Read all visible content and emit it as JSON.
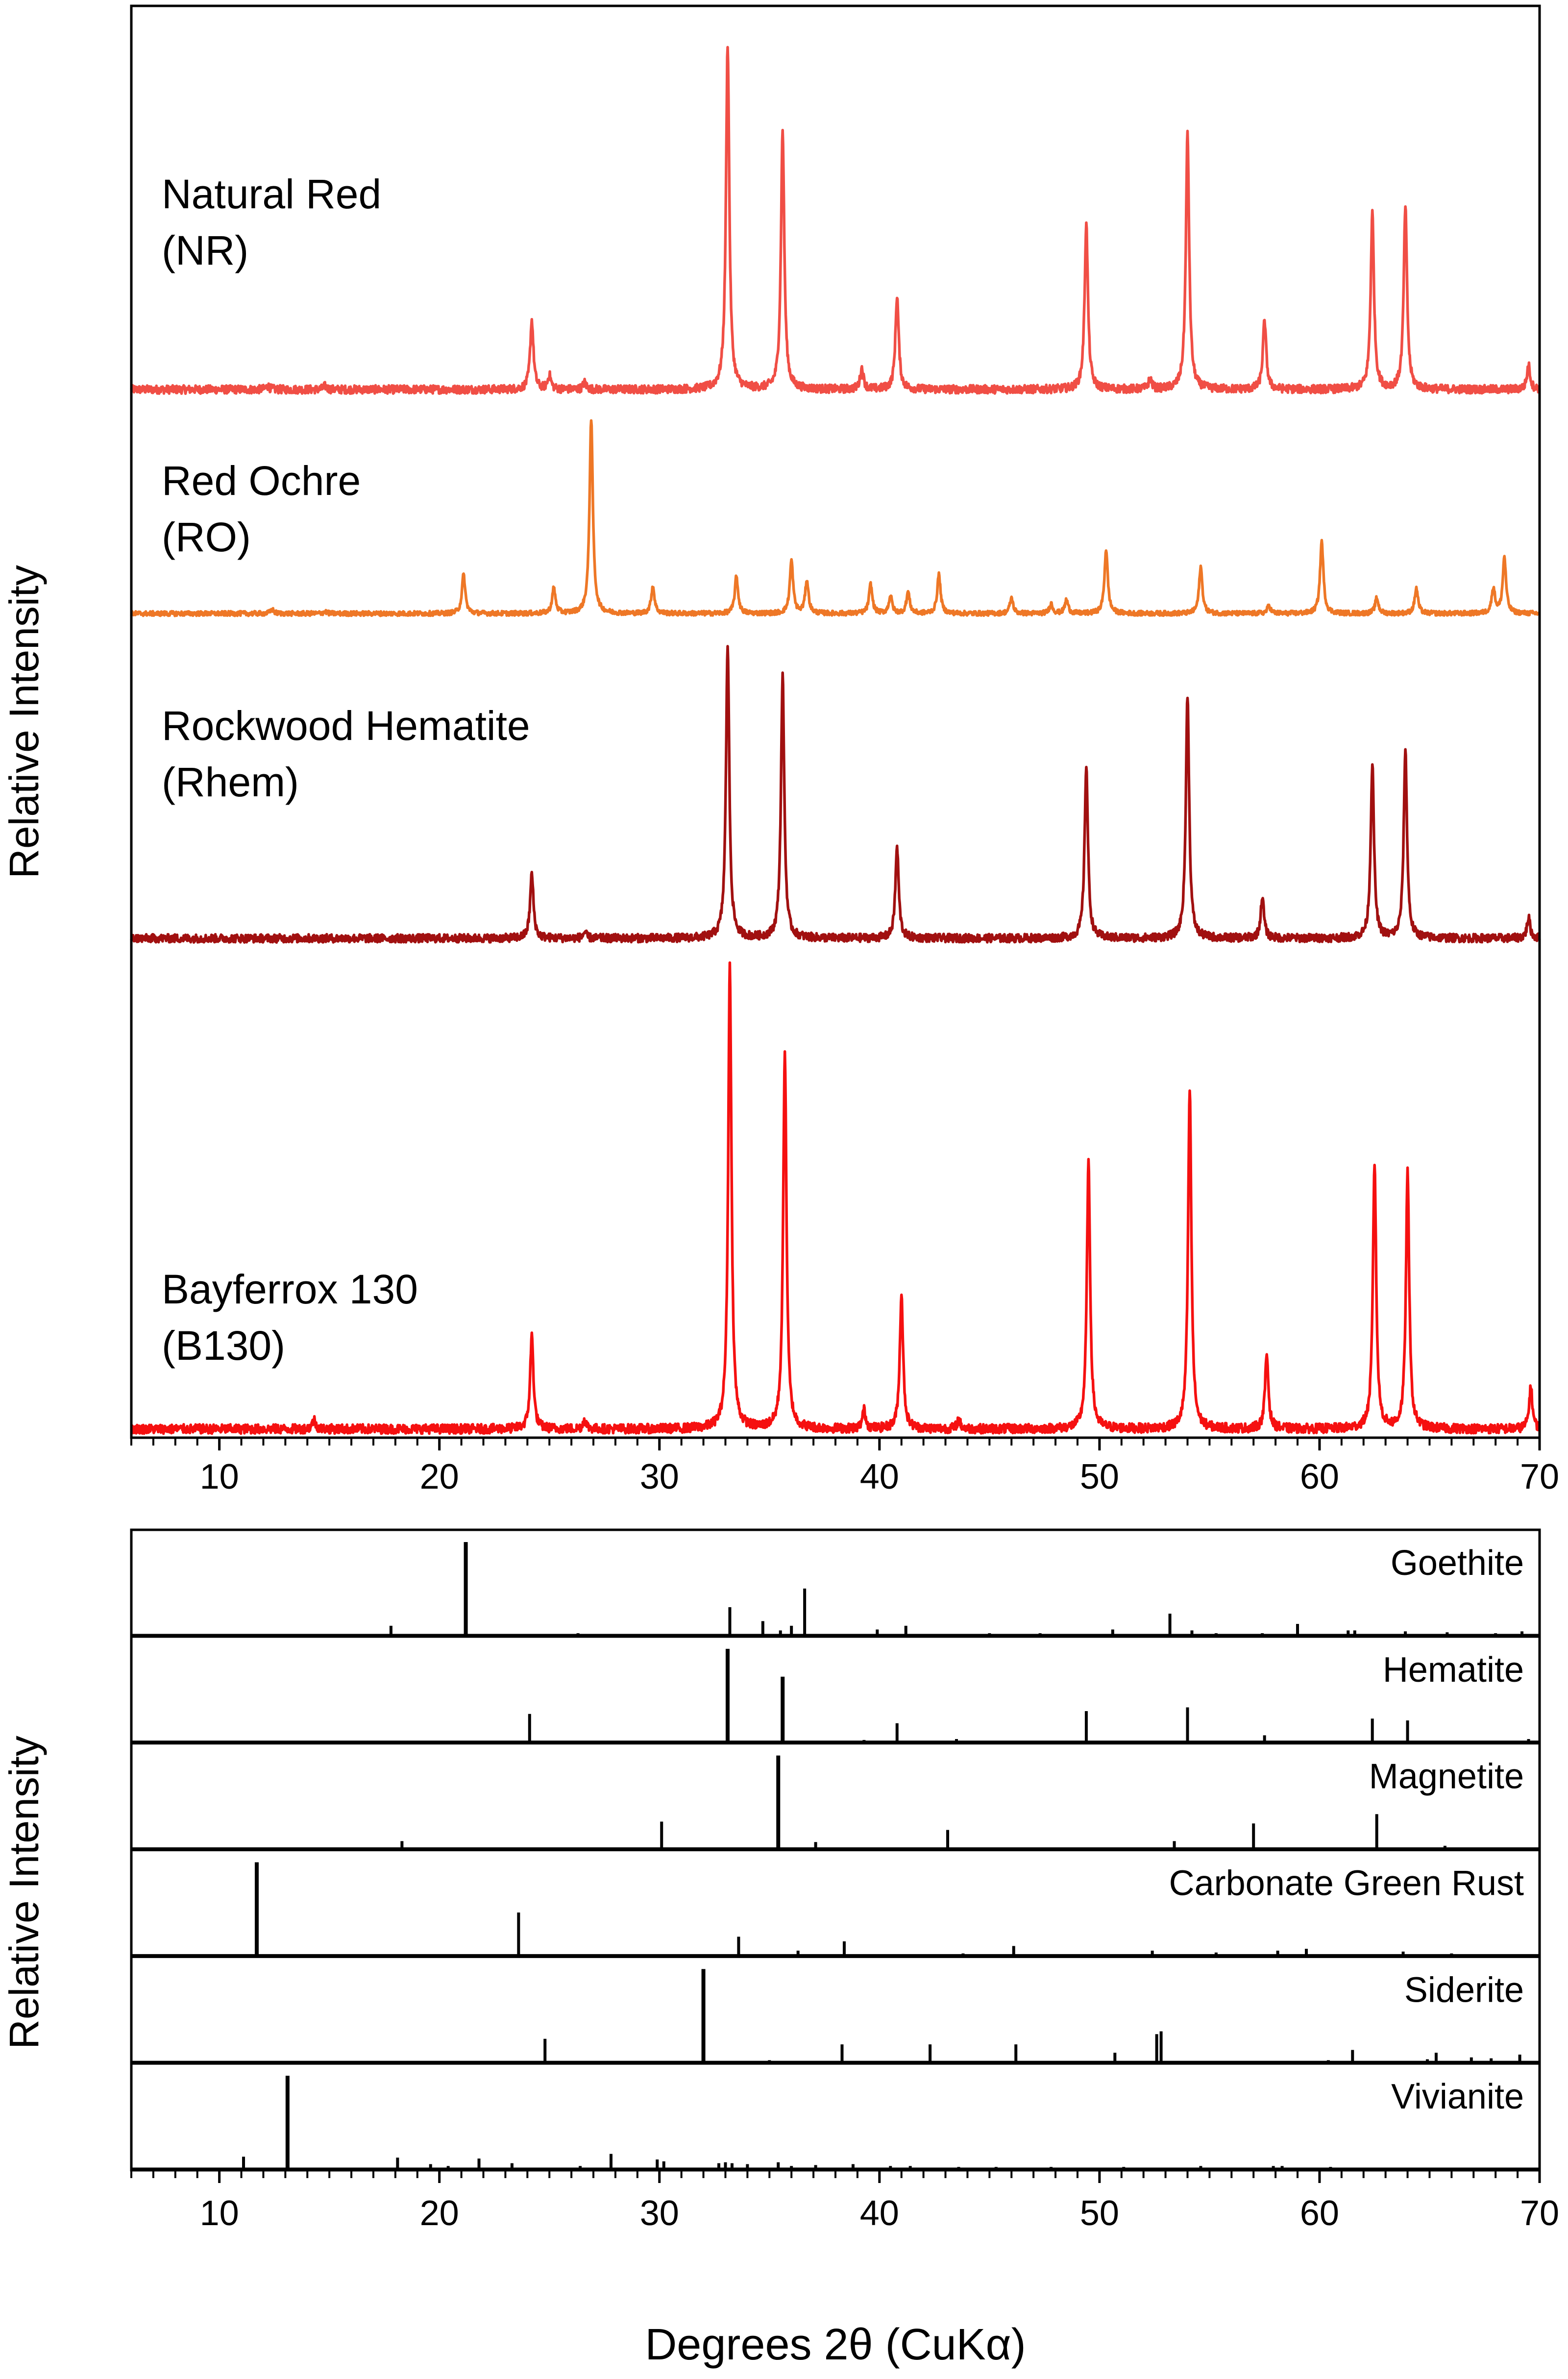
{
  "chart_data": [
    {
      "type": "line",
      "title": "",
      "xlabel": "",
      "ylabel": "Relative Intensity",
      "xlim": [
        6,
        70
      ],
      "x_ticks": [
        10,
        20,
        30,
        40,
        50,
        60,
        70
      ],
      "x_tick_labels": [
        "10",
        "20",
        "30",
        "40",
        "50",
        "60",
        "70"
      ],
      "grid": false,
      "legend": "none (inline series labels at left)",
      "series": [
        {
          "name": "Natural Red",
          "label_lines": [
            "Natural Red",
            "(NR)"
          ],
          "color": "#f04e45",
          "noise": 0.012,
          "peaks": [
            [
              12.2,
              0.01
            ],
            [
              14.8,
              0.01
            ],
            [
              24.2,
              0.2
            ],
            [
              25.0,
              0.04
            ],
            [
              26.6,
              0.02
            ],
            [
              33.1,
              1.0
            ],
            [
              35.6,
              0.75
            ],
            [
              39.2,
              0.06
            ],
            [
              40.8,
              0.27
            ],
            [
              49.4,
              0.48
            ],
            [
              52.3,
              0.03
            ],
            [
              54.0,
              0.74
            ],
            [
              57.5,
              0.2
            ],
            [
              62.4,
              0.51
            ],
            [
              63.9,
              0.53
            ],
            [
              69.5,
              0.07
            ]
          ]
        },
        {
          "name": "Red Ochre",
          "label_lines": [
            "Red Ochre",
            "(RO)"
          ],
          "color": "#ee7726",
          "noise": 0.012,
          "peaks": [
            [
              12.4,
              0.02
            ],
            [
              14.8,
              0.01
            ],
            [
              21.1,
              0.2
            ],
            [
              25.2,
              0.13
            ],
            [
              26.9,
              1.0
            ],
            [
              29.7,
              0.14
            ],
            [
              33.5,
              0.19
            ],
            [
              36.0,
              0.27
            ],
            [
              36.7,
              0.17
            ],
            [
              39.6,
              0.15
            ],
            [
              40.5,
              0.09
            ],
            [
              41.3,
              0.11
            ],
            [
              42.7,
              0.2
            ],
            [
              46.0,
              0.08
            ],
            [
              47.8,
              0.05
            ],
            [
              48.5,
              0.07
            ],
            [
              50.3,
              0.33
            ],
            [
              54.6,
              0.24
            ],
            [
              57.7,
              0.04
            ],
            [
              60.1,
              0.37
            ],
            [
              62.6,
              0.08
            ],
            [
              64.4,
              0.13
            ],
            [
              67.9,
              0.13
            ],
            [
              68.4,
              0.29
            ]
          ]
        },
        {
          "name": "Rockwood Hematite",
          "label_lines": [
            "Rockwood Hematite",
            "(Rhem)"
          ],
          "color": "#a11010",
          "noise": 0.014,
          "peaks": [
            [
              24.2,
              0.22
            ],
            [
              26.6,
              0.02
            ],
            [
              33.1,
              1.0
            ],
            [
              35.6,
              0.89
            ],
            [
              40.8,
              0.31
            ],
            [
              49.4,
              0.59
            ],
            [
              54.0,
              0.83
            ],
            [
              57.4,
              0.14
            ],
            [
              62.4,
              0.59
            ],
            [
              63.9,
              0.64
            ],
            [
              69.5,
              0.07
            ]
          ]
        },
        {
          "name": "Bayferrox 130",
          "label_lines": [
            "Bayferrox 130",
            "(B130)"
          ],
          "color": "#f51010",
          "noise": 0.01,
          "peaks": [
            [
              14.3,
              0.02
            ],
            [
              24.2,
              0.2
            ],
            [
              26.6,
              0.02
            ],
            [
              33.2,
              1.0
            ],
            [
              35.7,
              0.81
            ],
            [
              39.3,
              0.04
            ],
            [
              41.0,
              0.29
            ],
            [
              43.6,
              0.02
            ],
            [
              49.5,
              0.57
            ],
            [
              54.1,
              0.73
            ],
            [
              57.6,
              0.16
            ],
            [
              62.5,
              0.57
            ],
            [
              64.0,
              0.55
            ],
            [
              69.6,
              0.09
            ]
          ]
        }
      ]
    },
    {
      "type": "bar",
      "title": "",
      "xlabel": "Degrees 2θ (CuKα)",
      "ylabel": "Relative Intensity",
      "xlim": [
        6,
        70
      ],
      "x_ticks": [
        10,
        20,
        30,
        40,
        50,
        60,
        70
      ],
      "x_tick_labels": [
        "10",
        "20",
        "30",
        "40",
        "50",
        "60",
        "70"
      ],
      "grid": false,
      "legend": "none (reference name at right of each panel)",
      "series": [
        {
          "name": "Goethite",
          "color": "#000000",
          "lines": [
            [
              17.8,
              0.1
            ],
            [
              21.2,
              1.0
            ],
            [
              26.3,
              0.02
            ],
            [
              33.2,
              0.3
            ],
            [
              34.7,
              0.15
            ],
            [
              35.5,
              0.05
            ],
            [
              36.0,
              0.1
            ],
            [
              36.6,
              0.5
            ],
            [
              39.9,
              0.06
            ],
            [
              41.2,
              0.1
            ],
            [
              45.0,
              0.02
            ],
            [
              47.3,
              0.02
            ],
            [
              50.6,
              0.06
            ],
            [
              53.2,
              0.23
            ],
            [
              54.2,
              0.05
            ],
            [
              55.3,
              0.02
            ],
            [
              57.4,
              0.02
            ],
            [
              59.0,
              0.12
            ],
            [
              61.3,
              0.05
            ],
            [
              61.6,
              0.05
            ],
            [
              63.9,
              0.04
            ],
            [
              65.8,
              0.03
            ],
            [
              68.0,
              0.02
            ],
            [
              69.2,
              0.04
            ]
          ]
        },
        {
          "name": "Hematite",
          "color": "#000000",
          "lines": [
            [
              24.1,
              0.3
            ],
            [
              33.1,
              1.0
            ],
            [
              35.6,
              0.7
            ],
            [
              39.3,
              0.02
            ],
            [
              40.8,
              0.2
            ],
            [
              43.5,
              0.03
            ],
            [
              49.4,
              0.33
            ],
            [
              54.0,
              0.37
            ],
            [
              57.5,
              0.07
            ],
            [
              62.4,
              0.25
            ],
            [
              64.0,
              0.23
            ],
            [
              69.5,
              0.03
            ]
          ]
        },
        {
          "name": "Magnetite",
          "color": "#000000",
          "lines": [
            [
              18.3,
              0.08
            ],
            [
              30.1,
              0.29
            ],
            [
              35.4,
              1.0
            ],
            [
              37.1,
              0.07
            ],
            [
              43.1,
              0.2
            ],
            [
              53.4,
              0.08
            ],
            [
              57.0,
              0.27
            ],
            [
              62.6,
              0.37
            ],
            [
              65.7,
              0.03
            ]
          ]
        },
        {
          "name": "Carbonate Green Rust",
          "color": "#000000",
          "lines": [
            [
              11.7,
              1.0
            ],
            [
              23.6,
              0.46
            ],
            [
              33.6,
              0.2
            ],
            [
              36.3,
              0.05
            ],
            [
              38.4,
              0.15
            ],
            [
              43.8,
              0.02
            ],
            [
              46.1,
              0.1
            ],
            [
              52.4,
              0.05
            ],
            [
              55.3,
              0.03
            ],
            [
              58.1,
              0.05
            ],
            [
              59.4,
              0.07
            ],
            [
              63.8,
              0.04
            ],
            [
              66.0,
              0.02
            ]
          ]
        },
        {
          "name": "Siderite",
          "color": "#000000",
          "lines": [
            [
              24.8,
              0.25
            ],
            [
              32.0,
              1.0
            ],
            [
              35.0,
              0.02
            ],
            [
              38.3,
              0.19
            ],
            [
              42.3,
              0.19
            ],
            [
              46.2,
              0.19
            ],
            [
              50.7,
              0.1
            ],
            [
              52.6,
              0.3
            ],
            [
              52.8,
              0.33
            ],
            [
              60.4,
              0.02
            ],
            [
              61.5,
              0.13
            ],
            [
              64.9,
              0.03
            ],
            [
              65.3,
              0.1
            ],
            [
              66.9,
              0.05
            ],
            [
              67.8,
              0.04
            ],
            [
              69.1,
              0.08
            ]
          ]
        },
        {
          "name": "Vivianite",
          "color": "#000000",
          "lines": [
            [
              11.1,
              0.13
            ],
            [
              13.1,
              1.0
            ],
            [
              18.1,
              0.12
            ],
            [
              19.6,
              0.05
            ],
            [
              20.4,
              0.03
            ],
            [
              21.8,
              0.11
            ],
            [
              23.3,
              0.06
            ],
            [
              26.4,
              0.03
            ],
            [
              27.8,
              0.16
            ],
            [
              29.9,
              0.1
            ],
            [
              30.2,
              0.08
            ],
            [
              32.7,
              0.06
            ],
            [
              33.0,
              0.07
            ],
            [
              33.3,
              0.06
            ],
            [
              34.0,
              0.05
            ],
            [
              35.4,
              0.07
            ],
            [
              36.0,
              0.03
            ],
            [
              37.1,
              0.04
            ],
            [
              38.8,
              0.05
            ],
            [
              40.5,
              0.03
            ],
            [
              41.4,
              0.03
            ],
            [
              43.6,
              0.02
            ],
            [
              45.3,
              0.02
            ],
            [
              47.8,
              0.02
            ],
            [
              51.1,
              0.02
            ],
            [
              54.6,
              0.03
            ],
            [
              57.9,
              0.03
            ],
            [
              58.3,
              0.03
            ],
            [
              60.5,
              0.02
            ]
          ]
        }
      ]
    }
  ]
}
